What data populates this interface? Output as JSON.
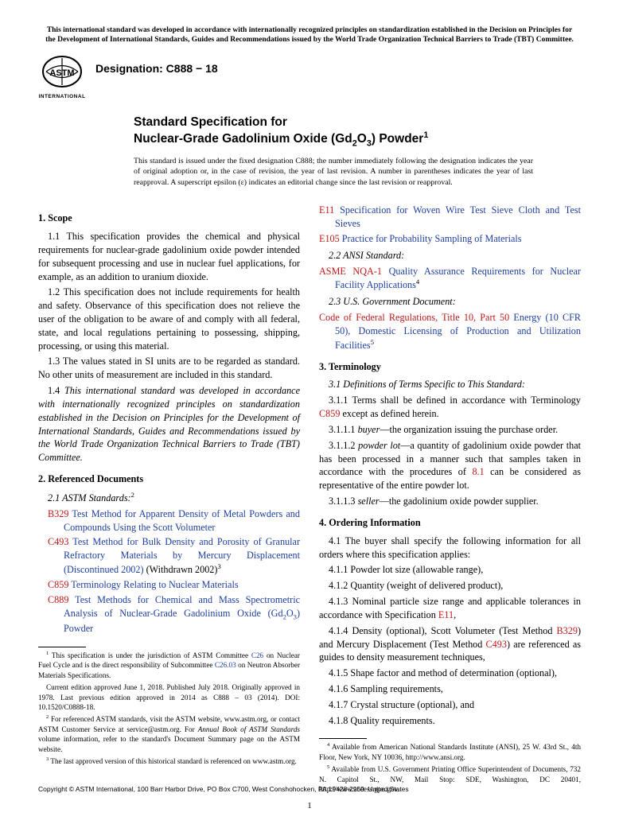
{
  "top_notice": "This international standard was developed in accordance with internationally recognized principles on standardization established in the Decision on Principles for the Development of International Standards, Guides and Recommendations issued by the World Trade Organization Technical Barriers to Trade (TBT) Committee.",
  "logo_text": "INTERNATIONAL",
  "designation": "Designation: C888 − 18",
  "title_line1": "Standard Specification for",
  "title_line2_a": "Nuclear-Grade Gadolinium Oxide (Gd",
  "title_line2_b": "O",
  "title_line2_c": ") Powder",
  "title_sup": "1",
  "title_note": "This standard is issued under the fixed designation C888; the number immediately following the designation indicates the year of original adoption or, in the case of revision, the year of last revision. A number in parentheses indicates the year of last reapproval. A superscript epsilon (ε) indicates an editorial change since the last revision or reapproval.",
  "s1_head": "1. Scope",
  "s1_1": "1.1 This specification provides the chemical and physical requirements for nuclear-grade gadolinium oxide powder intended for subsequent processing and use in nuclear fuel applications, for example, as an addition to uranium dioxide.",
  "s1_2": "1.2 This specification does not include requirements for health and safety. Observance of this specification does not relieve the user of the obligation to be aware of and comply with all federal, state, and local regulations pertaining to possessing, shipping, processing, or using this material.",
  "s1_3": "1.3 The values stated in SI units are to be regarded as standard. No other units of measurement are included in this standard.",
  "s1_4": "1.4 This international standard was developed in accordance with internationally recognized principles on standardization established in the Decision on Principles for the Development of International Standards, Guides and Recommendations issued by the World Trade Organization Technical Barriers to Trade (TBT) Committee.",
  "s2_head": "2. Referenced Documents",
  "s2_1": "ASTM Standards:",
  "s2_1_sup": "2",
  "ref_b329_code": "B329",
  "ref_b329": " Test Method for Apparent Density of Metal Powders and Compounds Using the Scott Volumeter",
  "ref_c493_code": "C493",
  "ref_c493": " Test Method for Bulk Density and Porosity of Granular Refractory Materials by Mercury Displacement (Discontinued 2002)",
  "ref_c493_tail": " (Withdrawn 2002)",
  "ref_c493_sup": "3",
  "ref_c859_code": "C859",
  "ref_c859": " Terminology Relating to Nuclear Materials",
  "ref_c889_code": "C889",
  "ref_c889_a": " Test Methods for Chemical and Mass Spectrometric Analysis of Nuclear-Grade Gadolinium Oxide (Gd",
  "ref_c889_b": "O",
  "ref_c889_c": ") Powder",
  "ref_e11_code": "E11",
  "ref_e11": " Specification for Woven Wire Test Sieve Cloth and Test Sieves",
  "ref_e105_code": "E105",
  "ref_e105": " Practice for Probability Sampling of Materials",
  "s2_2": "ANSI Standard:",
  "ref_asme_code": "ASME NQA-1",
  "ref_asme": " Quality Assurance Requirements for Nuclear Facility Applications",
  "ref_asme_sup": "4",
  "s2_3": "U.S. Government Document:",
  "ref_cfr_code": "Code of Federal Regulations, Title 10, Part 50",
  "ref_cfr": " Energy (10 CFR 50), Domestic Licensing of Production and Utilization Facilities",
  "ref_cfr_sup": "5",
  "s3_head": "3. Terminology",
  "s3_1": "Definitions of Terms Specific to This Standard:",
  "s3_1_1_a": "3.1.1 Terms shall be defined in accordance with Terminology ",
  "s3_1_1_link": "C859",
  "s3_1_1_b": " except as defined herein.",
  "s3_1_1_1_term": "buyer",
  "s3_1_1_1_def": "—the organization issuing the purchase order.",
  "s3_1_1_2_term": "powder lot",
  "s3_1_1_2_a": "—a quantity of gadolinium oxide powder that has been processed in a manner such that samples taken in accordance with the procedures of ",
  "s3_1_1_2_link": "8.1",
  "s3_1_1_2_b": " can be considered as representative of the entire powder lot.",
  "s3_1_1_3_term": "seller",
  "s3_1_1_3_def": "—the gadolinium oxide powder supplier.",
  "s4_head": "4. Ordering Information",
  "s4_1": "4.1 The buyer shall specify the following information for all orders where this specification applies:",
  "s4_1_1": "4.1.1 Powder lot size (allowable range),",
  "s4_1_2": "4.1.2 Quantity (weight of delivered product),",
  "s4_1_3_a": "4.1.3 Nominal particle size range and applicable tolerances in accordance with Specification ",
  "s4_1_3_link": "E11",
  "s4_1_3_b": ",",
  "s4_1_4_a": "4.1.4 Density (optional), Scott Volumeter (Test Method ",
  "s4_1_4_l1": "B329",
  "s4_1_4_b": ") and Mercury Displacement (Test Method ",
  "s4_1_4_l2": "C493",
  "s4_1_4_c": ") are referenced as guides to density measurement techniques,",
  "s4_1_5": "4.1.5 Shape factor and method of determination (optional),",
  "s4_1_6": "4.1.6 Sampling requirements,",
  "s4_1_7": "4.1.7 Crystal structure (optional), and",
  "s4_1_8": "4.1.8 Quality requirements.",
  "fn1_a": " This specification is under the jurisdiction of ASTM Committee ",
  "fn1_l1": "C26",
  "fn1_b": " on Nuclear Fuel Cycle and is the direct responsibility of Subcommittee ",
  "fn1_l2": "C26.03",
  "fn1_c": " on Neutron Absorber Materials Specifications.",
  "fn1d": "Current edition approved June 1, 2018. Published July 2018. Originally approved in 1978. Last previous edition approved in 2014 as C888 – 03 (2014). DOI: 10.1520/C0888-18.",
  "fn2_a": " For referenced ASTM standards, visit the ASTM website, www.astm.org, or contact ASTM Customer Service at service@astm.org. For ",
  "fn2_i": "Annual Book of ASTM Standards",
  "fn2_b": " volume information, refer to the standard's Document Summary page on the ASTM website.",
  "fn3": " The last approved version of this historical standard is referenced on www.astm.org.",
  "fn4": " Available from American National Standards Institute (ANSI), 25 W. 43rd St., 4th Floor, New York, NY 10036, http://www.ansi.org.",
  "fn5": " Available from U.S. Government Printing Office Superintendent of Documents, 732 N. Capitol St., NW, Mail Stop: SDE, Washington, DC 20401, http://www.access.gpo.gov.",
  "copyright": "Copyright © ASTM International, 100 Barr Harbor Drive, PO Box C700, West Conshohocken, PA 19428-2959. United States",
  "pagenum": "1"
}
